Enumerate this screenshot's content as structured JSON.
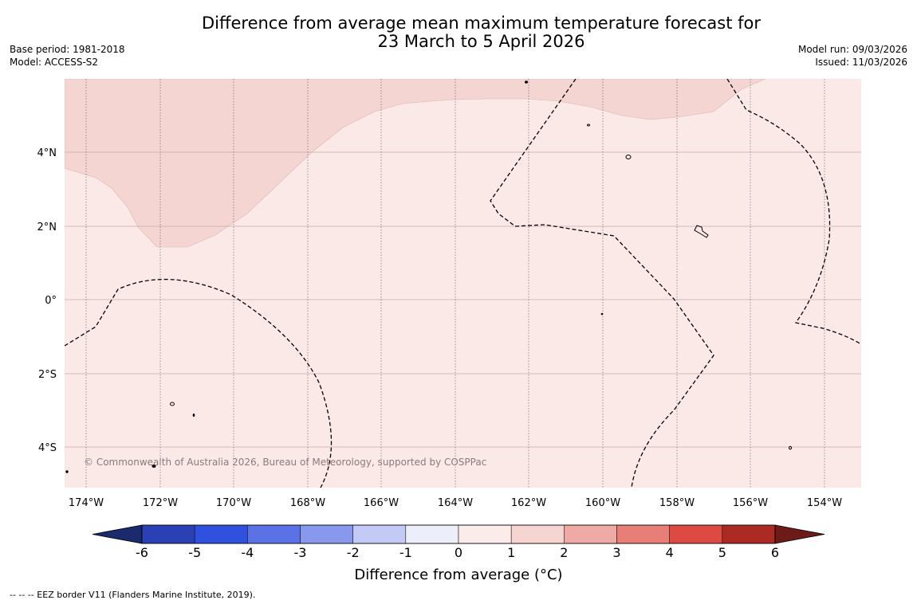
{
  "title": {
    "line1": "Difference from average mean maximum temperature forecast for",
    "line2": "23 March to 5 April 2026"
  },
  "meta_left": {
    "base_period": "Base period: 1981-2018",
    "model": "Model: ACCESS-S2"
  },
  "meta_right": {
    "model_run": "Model run: 09/03/2026",
    "issued": "Issued: 11/03/2026"
  },
  "map": {
    "lat_labels": [
      "4°N",
      "2°N",
      "0°",
      "2°S",
      "4°S"
    ],
    "lon_labels": [
      "174°W",
      "172°W",
      "170°W",
      "168°W",
      "166°W",
      "164°W",
      "162°W",
      "160°W",
      "158°W",
      "156°W",
      "154°W"
    ],
    "copyright": "© Commonwealth of Australia 2026, Bureau of Meteorology, supported by COSPPac",
    "fill_colors": {
      "anomaly_0_1": "#fbe9e7",
      "anomaly_1_2": "#f5d5d1"
    }
  },
  "colorbar": {
    "tick_labels": [
      "-6",
      "-5",
      "-4",
      "-3",
      "-2",
      "-1",
      "0",
      "1",
      "2",
      "3",
      "4",
      "5",
      "6"
    ],
    "label": "Difference from average (°C)",
    "colors": [
      "#1a2a6c",
      "#2a40b4",
      "#3050e0",
      "#5a72e6",
      "#8898ec",
      "#c4caf6",
      "#eceef9",
      "#fbecea",
      "#f6d4d0",
      "#f0aaa5",
      "#e77f78",
      "#dc4a42",
      "#ab2a24",
      "#6e1a16"
    ]
  },
  "footnote": "--  --  -- EEZ border V11 (Flanders Marine Institute, 2019)."
}
